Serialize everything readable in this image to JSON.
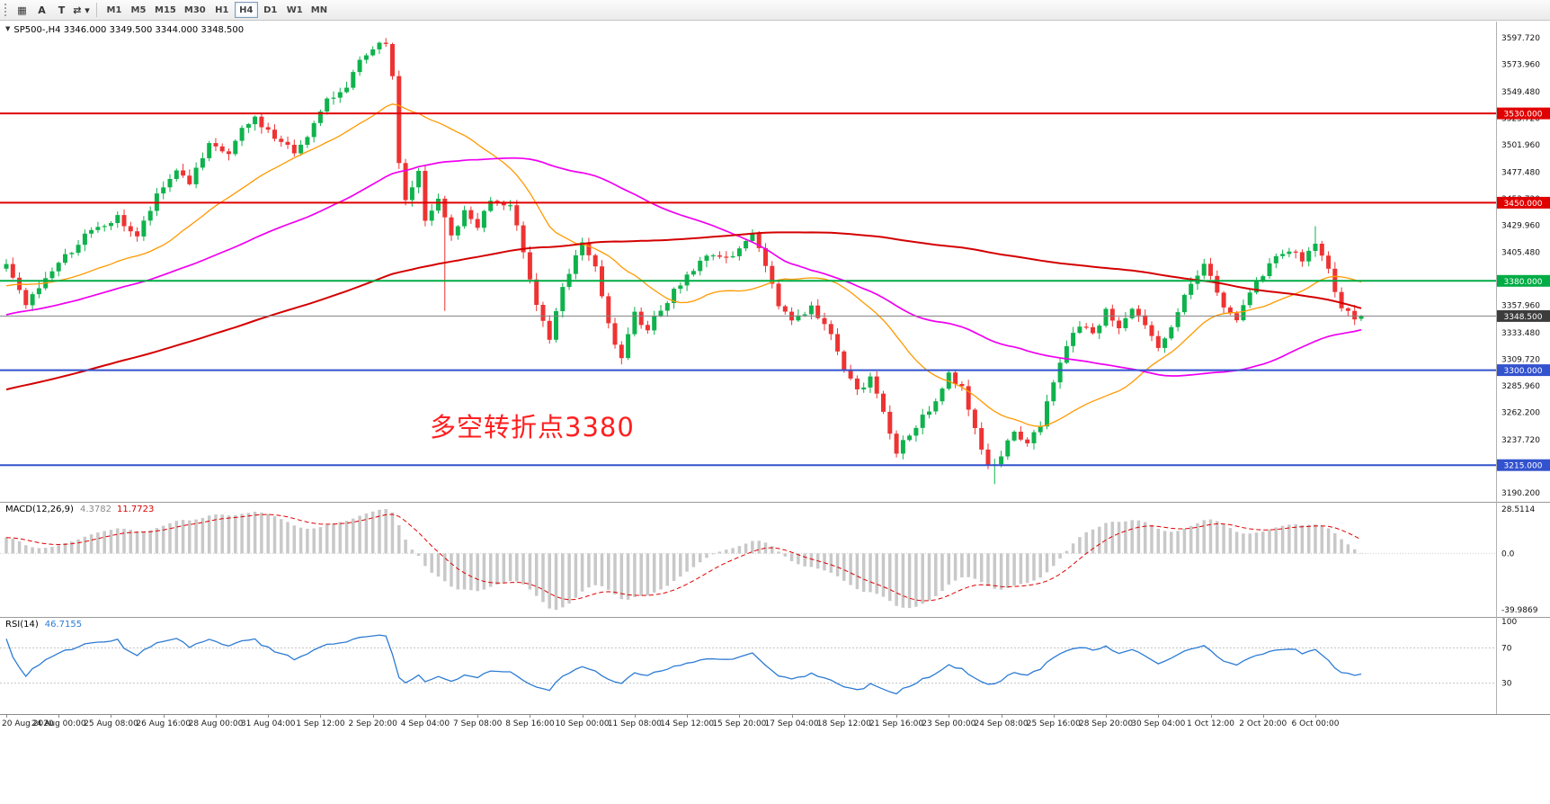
{
  "toolbar": {
    "tools": [
      {
        "name": "chart-grid-icon",
        "glyph": "▦"
      },
      {
        "name": "cursor-tool",
        "glyph": "A"
      },
      {
        "name": "text-tool",
        "glyph": "T"
      },
      {
        "name": "cycle-symbols-icon",
        "glyph": "⇄ ▾"
      }
    ],
    "timeframes": [
      "M1",
      "M5",
      "M15",
      "M30",
      "H1",
      "H4",
      "D1",
      "W1",
      "MN"
    ],
    "active_timeframe": "H4"
  },
  "main_chart": {
    "expand_icon": "▼",
    "symbol_ohlc_line": "SP500-,H4  3346.000 3349.500 3344.000 3348.500",
    "annotation": {
      "text": "多空转折点3380",
      "color": "#FF1F1F"
    },
    "current_price_label": "3348.500",
    "price_ticks": [
      "3597.720",
      "3573.960",
      "3549.480",
      "3525.720",
      "3501.960",
      "3477.480",
      "3453.720",
      "3429.960",
      "3405.480",
      "3381.720",
      "3357.960",
      "3333.480",
      "3309.720",
      "3285.960",
      "3262.200",
      "3237.720",
      "3213.960",
      "3190.200"
    ],
    "levels": [
      {
        "value": 3530,
        "label": "3530.000",
        "color": "#E00000"
      },
      {
        "value": 3450,
        "label": "3450.000",
        "color": "#E00000"
      },
      {
        "value": 3380,
        "label": "3380.000",
        "color": "#00AC45"
      },
      {
        "value": 3300,
        "label": "3300.000",
        "color": "#3352CE"
      },
      {
        "value": 3215,
        "label": "3215.000",
        "color": "#3352CE"
      }
    ]
  },
  "macd_panel": {
    "name": "MACD(12,26,9)",
    "value_main": "4.3782",
    "value_signal": "11.7723",
    "axis_labels": {
      "max": "28.5114",
      "zero": "0.0",
      "min": "-39.9869"
    }
  },
  "rsi_panel": {
    "name": "RSI(14)",
    "value": "46.7155",
    "axis_labels": [
      {
        "value": 100,
        "label": "100"
      },
      {
        "value": 70,
        "label": "70"
      },
      {
        "value": 30,
        "label": "30"
      }
    ],
    "dashed_levels": [
      70,
      30
    ]
  },
  "time_axis": {
    "labels": [
      "20 Aug 2020",
      "24 Aug 00:00",
      "25 Aug 08:00",
      "26 Aug 16:00",
      "28 Aug 00:00",
      "31 Aug 04:00",
      "1 Sep 12:00",
      "2 Sep 20:00",
      "4 Sep 04:00",
      "7 Sep 08:00",
      "8 Sep 16:00",
      "10 Sep 00:00",
      "11 Sep 08:00",
      "14 Sep 12:00",
      "15 Sep 20:00",
      "17 Sep 04:00",
      "18 Sep 12:00",
      "21 Sep 16:00",
      "23 Sep 00:00",
      "24 Sep 08:00",
      "25 Sep 16:00",
      "28 Sep 20:00",
      "30 Sep 04:00",
      "1 Oct 12:00",
      "2 Oct 20:00",
      "6 Oct 00:00"
    ]
  },
  "chart_data": {
    "type": "candlestick",
    "title": "SP500-,H4",
    "timeframe": "H4",
    "bar_count": 208,
    "bars_per_time_tick": 8,
    "ylim": [
      3182.1,
      3612.2
    ],
    "y_ticks": [
      3597.72,
      3573.96,
      3549.48,
      3525.72,
      3501.96,
      3477.48,
      3453.72,
      3429.96,
      3405.48,
      3381.72,
      3357.96,
      3333.48,
      3309.72,
      3285.96,
      3262.2,
      3237.72,
      3213.96,
      3190.2
    ],
    "price_path_waypoints": [
      [
        0,
        3393
      ],
      [
        3,
        3358
      ],
      [
        7,
        3390
      ],
      [
        12,
        3420
      ],
      [
        17,
        3436
      ],
      [
        20,
        3420
      ],
      [
        23,
        3455
      ],
      [
        26,
        3480
      ],
      [
        28,
        3468
      ],
      [
        31,
        3500
      ],
      [
        34,
        3494
      ],
      [
        36,
        3514
      ],
      [
        38,
        3526
      ],
      [
        41,
        3508
      ],
      [
        44,
        3495
      ],
      [
        47,
        3520
      ],
      [
        49,
        3540
      ],
      [
        52,
        3556
      ],
      [
        54,
        3575
      ],
      [
        57,
        3590
      ],
      [
        58,
        3594
      ],
      [
        59,
        3560
      ],
      [
        60,
        3487
      ],
      [
        61,
        3452
      ],
      [
        63,
        3477
      ],
      [
        64,
        3432
      ],
      [
        66,
        3452
      ],
      [
        68,
        3420
      ],
      [
        70,
        3441
      ],
      [
        72,
        3430
      ],
      [
        74,
        3452
      ],
      [
        77,
        3445
      ],
      [
        79,
        3408
      ],
      [
        81,
        3360
      ],
      [
        83,
        3328
      ],
      [
        85,
        3372
      ],
      [
        87,
        3400
      ],
      [
        88,
        3416
      ],
      [
        90,
        3390
      ],
      [
        92,
        3340
      ],
      [
        94,
        3308
      ],
      [
        96,
        3350
      ],
      [
        98,
        3338
      ],
      [
        100,
        3356
      ],
      [
        102,
        3370
      ],
      [
        104,
        3385
      ],
      [
        106,
        3396
      ],
      [
        108,
        3406
      ],
      [
        110,
        3398
      ],
      [
        112,
        3412
      ],
      [
        114,
        3421
      ],
      [
        116,
        3395
      ],
      [
        118,
        3360
      ],
      [
        120,
        3345
      ],
      [
        123,
        3356
      ],
      [
        125,
        3340
      ],
      [
        127,
        3320
      ],
      [
        128,
        3302
      ],
      [
        130,
        3280
      ],
      [
        132,
        3292
      ],
      [
        134,
        3264
      ],
      [
        136,
        3228
      ],
      [
        138,
        3240
      ],
      [
        140,
        3260
      ],
      [
        142,
        3272
      ],
      [
        144,
        3296
      ],
      [
        146,
        3284
      ],
      [
        148,
        3250
      ],
      [
        150,
        3212
      ],
      [
        152,
        3226
      ],
      [
        154,
        3242
      ],
      [
        156,
        3234
      ],
      [
        158,
        3252
      ],
      [
        160,
        3292
      ],
      [
        162,
        3320
      ],
      [
        164,
        3342
      ],
      [
        166,
        3334
      ],
      [
        168,
        3352
      ],
      [
        170,
        3340
      ],
      [
        172,
        3356
      ],
      [
        174,
        3338
      ],
      [
        176,
        3318
      ],
      [
        178,
        3336
      ],
      [
        180,
        3366
      ],
      [
        182,
        3386
      ],
      [
        183,
        3396
      ],
      [
        186,
        3358
      ],
      [
        188,
        3344
      ],
      [
        190,
        3370
      ],
      [
        192,
        3386
      ],
      [
        194,
        3402
      ],
      [
        196,
        3407
      ],
      [
        198,
        3400
      ],
      [
        200,
        3413
      ],
      [
        202,
        3390
      ],
      [
        204,
        3356
      ],
      [
        206,
        3344
      ],
      [
        207,
        3348.5
      ]
    ],
    "wick_overrides": [
      {
        "bar": 58,
        "high": 3597.5
      },
      {
        "bar": 67,
        "low": 3353
      },
      {
        "bar": 151,
        "low": 3198
      },
      {
        "bar": 200,
        "high": 3429
      }
    ],
    "last_bar": {
      "open": 3346.0,
      "high": 3349.5,
      "low": 3344.0,
      "close": 3348.5
    },
    "history_warmup": {
      "bars": 150,
      "start": 3170,
      "end": 3392
    },
    "noise_amp": 3.5,
    "moving_averages": [
      {
        "period": 24,
        "type": "sma",
        "color": "#FF9900",
        "width": 1.3
      },
      {
        "period": 60,
        "type": "sma",
        "color": "#F000F0",
        "width": 1.7
      },
      {
        "period": 150,
        "type": "sma",
        "color": "#D40000",
        "width": 2
      }
    ],
    "horizontal_levels": [
      3530,
      3450,
      3380,
      3300,
      3215
    ],
    "current_price": 3348.5,
    "indicators": [
      {
        "type": "macd",
        "fast": 12,
        "slow": 26,
        "signal": 9,
        "last_main": 4.3782,
        "last_signal": 11.7723,
        "visible_range": [
          -39.9869,
          28.5114
        ]
      },
      {
        "type": "rsi",
        "period": 14,
        "last": 46.7155,
        "levels": [
          30,
          70
        ],
        "range": [
          0,
          100
        ]
      }
    ],
    "colors": {
      "up": "#0FB24C",
      "down": "#EE3333",
      "macd_hist": "#C8C8C8",
      "macd_signal": "#E00000",
      "rsi": "#2C7BD4"
    }
  }
}
